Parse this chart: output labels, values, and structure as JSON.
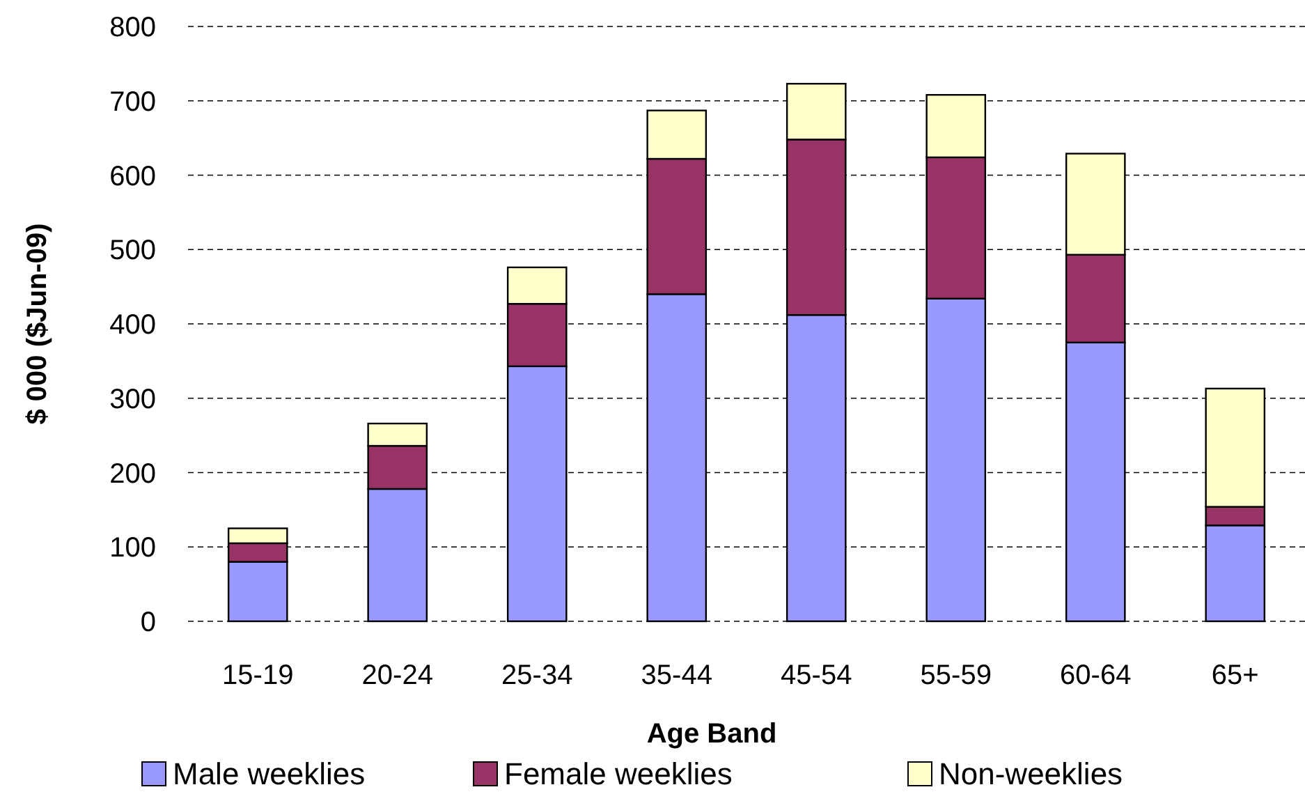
{
  "chart_data": {
    "type": "bar",
    "stacked": true,
    "xlabel": "Age Band",
    "ylabel": "$ 000 ($Jun-09)",
    "categories": [
      "15-19",
      "20-24",
      "25-34",
      "35-44",
      "45-54",
      "55-59",
      "60-64",
      "65+"
    ],
    "series": [
      {
        "name": "Male weeklies",
        "color": "#9999ff",
        "values": [
          80,
          178,
          343,
          440,
          412,
          434,
          375,
          129
        ]
      },
      {
        "name": "Female weeklies",
        "color": "#993366",
        "values": [
          25,
          58,
          84,
          182,
          236,
          190,
          118,
          25
        ]
      },
      {
        "name": "Non-weeklies",
        "color": "#ffffcc",
        "values": [
          20,
          30,
          49,
          65,
          75,
          84,
          136,
          159
        ]
      }
    ],
    "ylim": [
      0,
      800
    ],
    "yticks": [
      0,
      100,
      200,
      300,
      400,
      500,
      600,
      700,
      800
    ],
    "grid": "y",
    "legend": "bottom"
  }
}
